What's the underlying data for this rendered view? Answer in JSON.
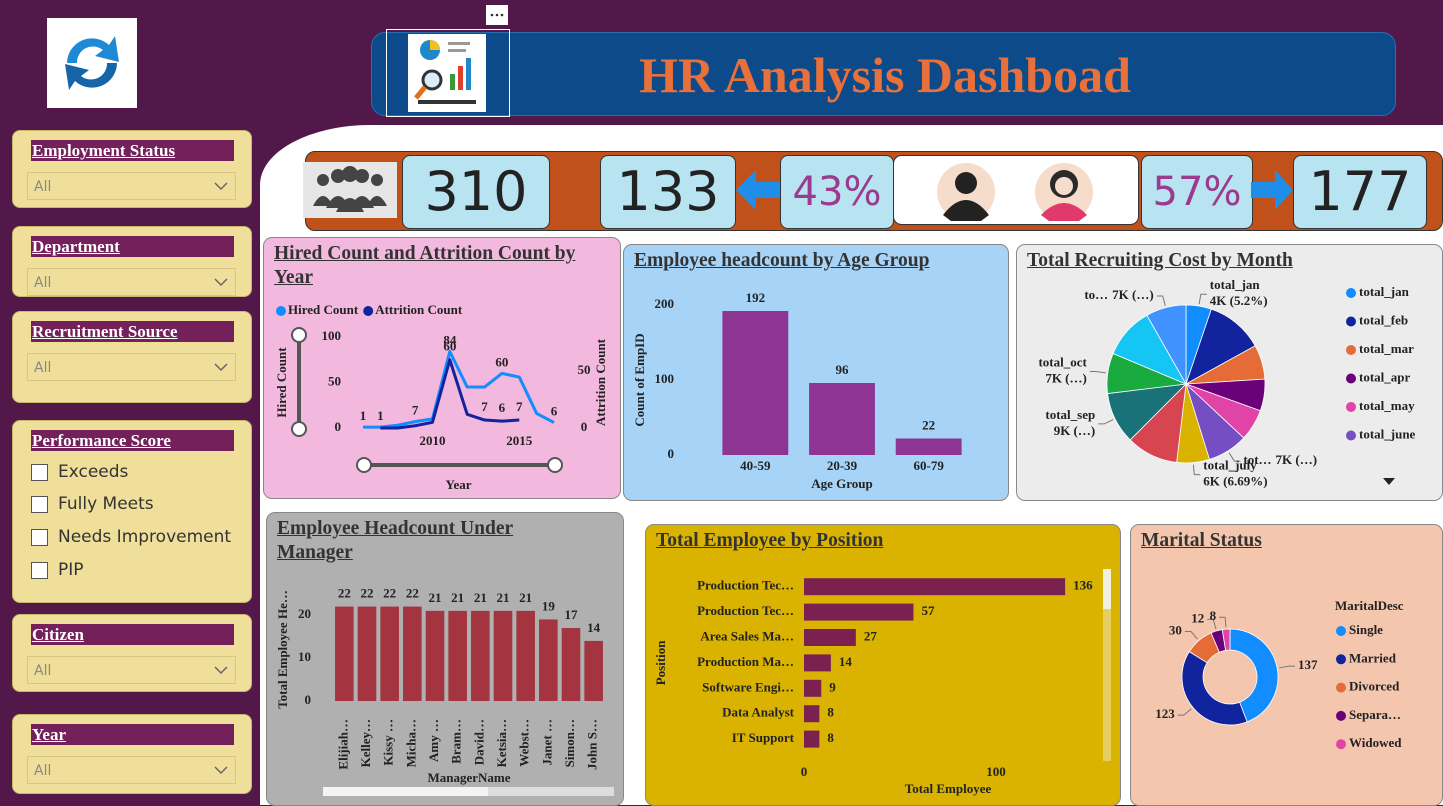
{
  "header": {
    "title": "HR Analysis Dashboad"
  },
  "filters": [
    {
      "label": "Employment Status",
      "value": "All"
    },
    {
      "label": "Department",
      "value": "All"
    },
    {
      "label": "Recruitment Source",
      "value": "All"
    },
    {
      "label": "Citizen",
      "value": "All"
    },
    {
      "label": "Year",
      "value": "All"
    }
  ],
  "performance": {
    "label": "Performance Score",
    "options": [
      "Exceeds",
      "Fully Meets",
      "Needs Improvement",
      "PIP"
    ]
  },
  "kpis": {
    "total": 310,
    "male_count": 133,
    "male_share": "43%",
    "female_share": "57%",
    "female_count": 177
  },
  "chart_data": [
    {
      "type": "line",
      "title": "Hired Count and Attrition Count by Year",
      "x": [
        2006,
        2007,
        2008,
        2009,
        2010,
        2011,
        2012,
        2013,
        2014,
        2015,
        2016,
        2017
      ],
      "series": [
        {
          "name": "Hired Count",
          "color": "#118dff",
          "values": [
            1,
            1,
            3,
            7,
            10,
            84,
            45,
            45,
            60,
            56,
            16,
            6
          ],
          "value_labels": [
            "1",
            "1",
            null,
            "7",
            null,
            "84",
            null,
            null,
            "60",
            null,
            null,
            "6"
          ]
        },
        {
          "name": "Attrition Count",
          "color": "#12239e",
          "axis": "y2",
          "values": [
            null,
            0,
            0,
            2,
            5,
            60,
            12,
            7,
            6,
            7,
            null,
            null
          ],
          "value_labels": [
            null,
            null,
            null,
            null,
            null,
            "60",
            null,
            "7",
            "6",
            "7",
            null,
            null
          ]
        }
      ],
      "xlabel": "Year",
      "ylabel": "Hired Count",
      "y2label": "Attrition Count",
      "xlim": [
        2006,
        2017
      ],
      "xticks": [
        2010,
        2015
      ],
      "ylim": [
        0,
        100
      ],
      "yticks": [
        0,
        50,
        100
      ],
      "y2lim": [
        0,
        80
      ],
      "y2ticks": [
        0,
        50
      ]
    },
    {
      "type": "bar",
      "title": "Employee headcount by Age Group",
      "categories": [
        "40-59",
        "20-39",
        "60-79"
      ],
      "values": [
        192,
        96,
        22
      ],
      "color": "#8e3593",
      "xlabel": "Age Group",
      "ylabel": "Count of EmpID",
      "ylim": [
        0,
        200
      ],
      "yticks": [
        0,
        100,
        200
      ]
    },
    {
      "type": "pie",
      "title": "Total Recruiting Cost by Month",
      "categories": [
        "total_jan",
        "total_feb",
        "total_mar",
        "total_apr",
        "total_may",
        "total_june",
        "total_july",
        null,
        "total_sep",
        "total_oct",
        null,
        null
      ],
      "values": [
        4420,
        10000,
        6000,
        5500,
        5500,
        7000,
        5687,
        9000,
        9000,
        7000,
        8893,
        7000
      ],
      "value_labels": [
        "4K (5.2%)",
        null,
        null,
        null,
        null,
        "7K (…)",
        "6K (6.69%)",
        null,
        "9K (…)",
        "7K (…)",
        null,
        "7K (…)"
      ],
      "short_names": [
        null,
        null,
        null,
        null,
        null,
        "tot…",
        null,
        null,
        null,
        null,
        null,
        "to…"
      ],
      "colors": [
        "#118dff",
        "#12239e",
        "#e66c37",
        "#6b007b",
        "#e044a7",
        "#744ec2",
        "#d9b300",
        "#d64550",
        "#197278",
        "#1aab40",
        "#15c6f4",
        "#4092ff"
      ]
    },
    {
      "type": "bar",
      "title": "Employee Headcount Under Manager",
      "categories": [
        "Elijiah…",
        "Kelley…",
        "Kissy …",
        "Micha…",
        "Amy …",
        "Bram…",
        "David…",
        "Ketsia…",
        "Webst…",
        "Janet …",
        "Simon…",
        "John S…"
      ],
      "values": [
        22,
        22,
        22,
        22,
        21,
        21,
        21,
        21,
        21,
        19,
        17,
        14
      ],
      "color": "#a4343f",
      "xlabel": "ManagerName",
      "ylabel": "Total Employee He…",
      "ylim": [
        0,
        24
      ],
      "yticks": [
        0,
        10,
        20
      ]
    },
    {
      "type": "bar",
      "orientation": "horizontal",
      "title": "Total Employee by Position",
      "categories": [
        "Production Tec…",
        "Production Tec…",
        "Area Sales Ma…",
        "Production Ma…",
        "Software Engi…",
        "Data Analyst",
        "IT Support"
      ],
      "values": [
        136,
        57,
        27,
        14,
        9,
        8,
        8
      ],
      "color": "#7b2150",
      "xlabel": "Total Employee",
      "ylabel": "Position",
      "xlim": [
        0,
        150
      ],
      "xticks": [
        0,
        100
      ]
    },
    {
      "type": "donut",
      "title": "Marital Status",
      "legend_title": "MaritalDesc",
      "categories": [
        "Single",
        "Married",
        "Divorced",
        "Separa…",
        "Widowed"
      ],
      "values": [
        137,
        123,
        30,
        12,
        8
      ],
      "colors": [
        "#118dff",
        "#12239e",
        "#e66c37",
        "#6b007b",
        "#e044a7"
      ]
    }
  ]
}
